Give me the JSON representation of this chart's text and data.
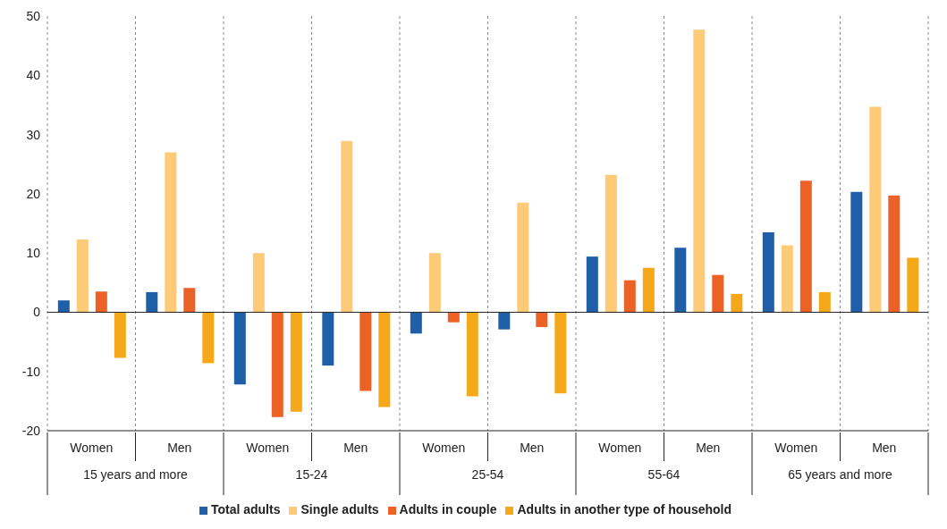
{
  "chart_data": {
    "type": "bar",
    "categories": [
      "Women",
      "Men",
      "Women",
      "Men",
      "Women",
      "Men",
      "Women",
      "Men",
      "Women",
      "Men"
    ],
    "annotations": [
      "15 years and more",
      "15-24",
      "25-54",
      "55-64",
      "65 years and more"
    ],
    "series": [
      {
        "name": "Total adults",
        "color": "#1f5fa8",
        "values": [
          2,
          3.4,
          -12.2,
          -9,
          -3.6,
          -2.9,
          9.4,
          10.9,
          13.5,
          20.3
        ]
      },
      {
        "name": "Single adults",
        "color": "#fdca78",
        "values": [
          12.3,
          27,
          10,
          28.9,
          10,
          18.5,
          23.2,
          47.7,
          11.3,
          34.7
        ]
      },
      {
        "name": "Adults in couple",
        "color": "#ec6125",
        "values": [
          3.5,
          4.1,
          -17.7,
          -13.3,
          -1.7,
          -2.5,
          5.4,
          6.3,
          22.2,
          19.7
        ]
      },
      {
        "name": "Adults in another type of household",
        "color": "#f6a81b",
        "values": [
          -7.7,
          -8.6,
          -16.8,
          -16,
          -14.2,
          -13.7,
          7.5,
          3.1,
          3.4,
          9.2
        ]
      }
    ],
    "ylim": [
      -20,
      50
    ],
    "yticks": [
      -20,
      -10,
      0,
      10,
      20,
      30,
      40,
      50
    ],
    "grid": "x",
    "legend": "bottom"
  }
}
